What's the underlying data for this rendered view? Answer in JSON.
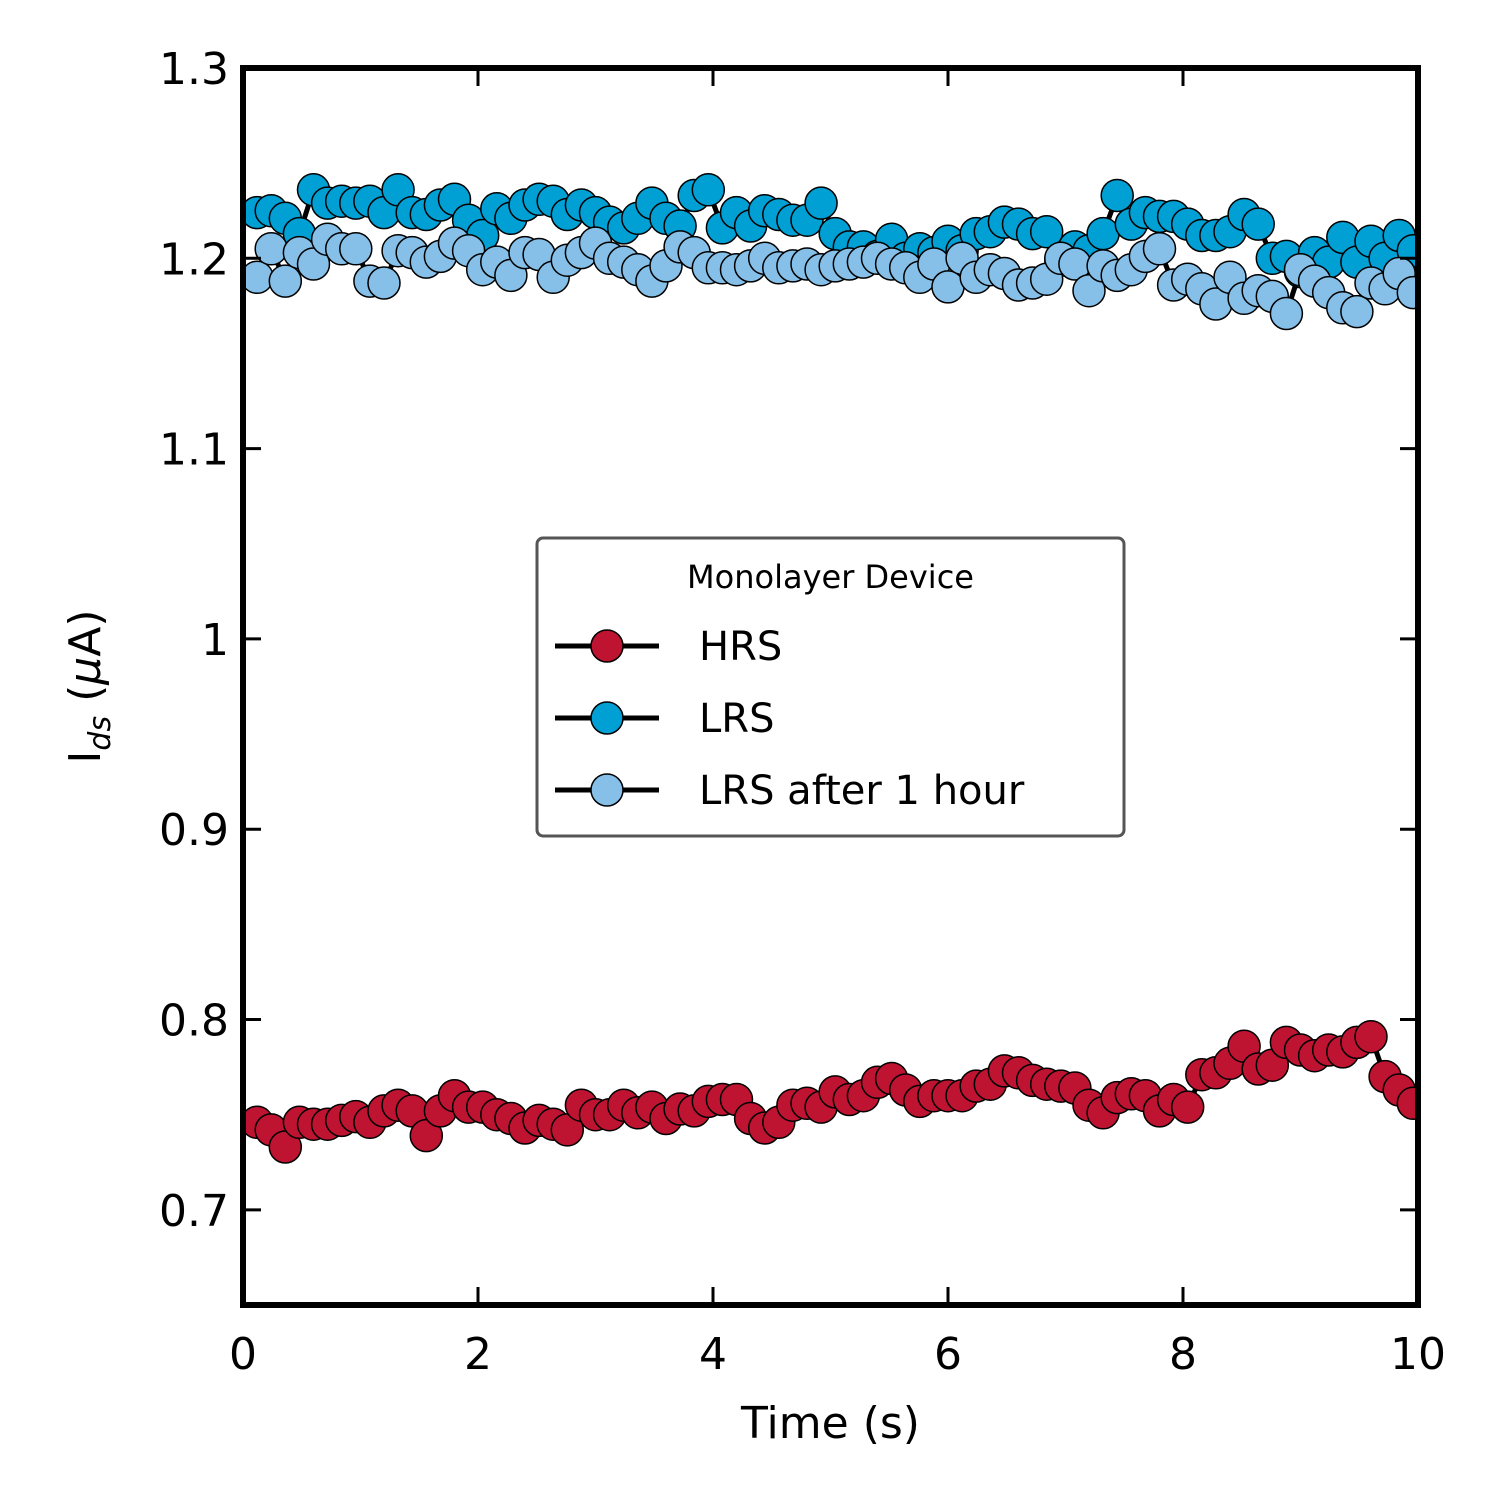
{
  "chart_data": {
    "type": "line",
    "xlabel": "Time (s)",
    "ylabel_main": "I",
    "ylabel_sub": "ds",
    "ylabel_unit_prefix": "(",
    "ylabel_unit_mu": "μ",
    "ylabel_unit_suffix": "A)",
    "xlim": [
      0,
      10
    ],
    "ylim": [
      0.65,
      1.3
    ],
    "x_ticks": [
      0,
      2,
      4,
      6,
      8,
      10
    ],
    "x_tick_labels": [
      "0",
      "2",
      "4",
      "6",
      "8",
      "10"
    ],
    "y_ticks": [
      0.7,
      0.8,
      0.9,
      1.0,
      1.1,
      1.2,
      1.3
    ],
    "y_tick_labels": [
      "0.7",
      "0.8",
      "0.9",
      "1",
      "1.1",
      "1.2",
      "1.3"
    ],
    "grid": false,
    "legend": {
      "title": "Monolayer Device",
      "placement": "center"
    },
    "series": [
      {
        "name": "HRS",
        "color": "#be1431",
        "x": [
          0.12,
          0.24,
          0.36,
          0.48,
          0.6,
          0.72,
          0.84,
          0.96,
          1.08,
          1.2,
          1.32,
          1.44,
          1.56,
          1.68,
          1.8,
          1.92,
          2.04,
          2.16,
          2.28,
          2.4,
          2.52,
          2.64,
          2.76,
          2.88,
          3.0,
          3.12,
          3.24,
          3.36,
          3.48,
          3.6,
          3.72,
          3.84,
          3.96,
          4.08,
          4.2,
          4.32,
          4.44,
          4.56,
          4.68,
          4.8,
          4.92,
          5.04,
          5.16,
          5.28,
          5.4,
          5.52,
          5.64,
          5.76,
          5.88,
          6.0,
          6.12,
          6.24,
          6.36,
          6.48,
          6.6,
          6.72,
          6.84,
          6.96,
          7.08,
          7.2,
          7.32,
          7.44,
          7.56,
          7.68,
          7.8,
          7.92,
          8.04,
          8.16,
          8.28,
          8.4,
          8.52,
          8.64,
          8.76,
          8.88,
          9.0,
          9.12,
          9.24,
          9.36,
          9.48,
          9.6,
          9.72,
          9.84,
          9.96
        ],
        "y": [
          0.746,
          0.742,
          0.733,
          0.746,
          0.745,
          0.745,
          0.747,
          0.749,
          0.746,
          0.752,
          0.755,
          0.752,
          0.739,
          0.752,
          0.76,
          0.754,
          0.754,
          0.75,
          0.748,
          0.743,
          0.747,
          0.745,
          0.742,
          0.755,
          0.75,
          0.75,
          0.755,
          0.751,
          0.754,
          0.748,
          0.753,
          0.752,
          0.757,
          0.758,
          0.758,
          0.748,
          0.743,
          0.746,
          0.755,
          0.756,
          0.754,
          0.762,
          0.758,
          0.76,
          0.767,
          0.769,
          0.763,
          0.757,
          0.76,
          0.76,
          0.76,
          0.765,
          0.766,
          0.773,
          0.772,
          0.768,
          0.766,
          0.765,
          0.764,
          0.755,
          0.751,
          0.759,
          0.761,
          0.76,
          0.752,
          0.758,
          0.754,
          0.771,
          0.772,
          0.777,
          0.786,
          0.774,
          0.776,
          0.788,
          0.784,
          0.781,
          0.784,
          0.783,
          0.788,
          0.791,
          0.77,
          0.763,
          0.756
        ]
      },
      {
        "name": "LRS",
        "color": "#00a0d4",
        "x": [
          0.12,
          0.24,
          0.36,
          0.48,
          0.6,
          0.72,
          0.84,
          0.96,
          1.08,
          1.2,
          1.32,
          1.44,
          1.56,
          1.68,
          1.8,
          1.92,
          2.04,
          2.16,
          2.28,
          2.4,
          2.52,
          2.64,
          2.76,
          2.88,
          3.0,
          3.12,
          3.24,
          3.36,
          3.48,
          3.6,
          3.72,
          3.84,
          3.96,
          4.08,
          4.2,
          4.32,
          4.44,
          4.56,
          4.68,
          4.8,
          4.92,
          5.04,
          5.16,
          5.28,
          5.4,
          5.52,
          5.64,
          5.76,
          5.88,
          6.0,
          6.12,
          6.24,
          6.36,
          6.48,
          6.6,
          6.72,
          6.84,
          6.96,
          7.08,
          7.2,
          7.32,
          7.44,
          7.56,
          7.68,
          7.8,
          7.92,
          8.04,
          8.16,
          8.28,
          8.4,
          8.52,
          8.64,
          8.76,
          8.88,
          9.0,
          9.12,
          9.24,
          9.36,
          9.48,
          9.6,
          9.72,
          9.84,
          9.96
        ],
        "y": [
          1.224,
          1.225,
          1.221,
          1.213,
          1.236,
          1.229,
          1.23,
          1.229,
          1.23,
          1.224,
          1.236,
          1.224,
          1.223,
          1.228,
          1.231,
          1.22,
          1.212,
          1.226,
          1.221,
          1.228,
          1.231,
          1.23,
          1.223,
          1.228,
          1.224,
          1.219,
          1.216,
          1.221,
          1.229,
          1.221,
          1.217,
          1.233,
          1.236,
          1.216,
          1.224,
          1.217,
          1.225,
          1.223,
          1.22,
          1.22,
          1.229,
          1.213,
          1.206,
          1.206,
          1.201,
          1.21,
          1.2,
          1.205,
          1.203,
          1.209,
          1.204,
          1.213,
          1.214,
          1.219,
          1.218,
          1.213,
          1.214,
          1.199,
          1.206,
          1.204,
          1.213,
          1.233,
          1.218,
          1.224,
          1.222,
          1.222,
          1.218,
          1.212,
          1.212,
          1.214,
          1.223,
          1.218,
          1.2,
          1.201,
          1.193,
          1.203,
          1.198,
          1.211,
          1.198,
          1.209,
          1.2,
          1.212,
          1.204
        ]
      },
      {
        "name": "LRS after 1 hour",
        "color": "#86c0e8",
        "x": [
          0.12,
          0.24,
          0.36,
          0.48,
          0.6,
          0.72,
          0.84,
          0.96,
          1.08,
          1.2,
          1.32,
          1.44,
          1.56,
          1.68,
          1.8,
          1.92,
          2.04,
          2.16,
          2.28,
          2.4,
          2.52,
          2.64,
          2.76,
          2.88,
          3.0,
          3.12,
          3.24,
          3.36,
          3.48,
          3.6,
          3.72,
          3.84,
          3.96,
          4.08,
          4.2,
          4.32,
          4.44,
          4.56,
          4.68,
          4.8,
          4.92,
          5.04,
          5.16,
          5.28,
          5.4,
          5.52,
          5.64,
          5.76,
          5.88,
          6.0,
          6.12,
          6.24,
          6.36,
          6.48,
          6.6,
          6.72,
          6.84,
          6.96,
          7.08,
          7.2,
          7.32,
          7.44,
          7.56,
          7.68,
          7.8,
          7.92,
          8.04,
          8.16,
          8.28,
          8.4,
          8.52,
          8.64,
          8.76,
          8.88,
          9.0,
          9.12,
          9.24,
          9.36,
          9.48,
          9.6,
          9.72,
          9.84,
          9.96
        ],
        "y": [
          1.19,
          1.205,
          1.188,
          1.203,
          1.197,
          1.21,
          1.205,
          1.205,
          1.188,
          1.187,
          1.204,
          1.203,
          1.198,
          1.201,
          1.208,
          1.204,
          1.194,
          1.198,
          1.191,
          1.203,
          1.202,
          1.19,
          1.199,
          1.203,
          1.208,
          1.2,
          1.198,
          1.194,
          1.188,
          1.196,
          1.206,
          1.203,
          1.195,
          1.195,
          1.194,
          1.196,
          1.2,
          1.195,
          1.196,
          1.197,
          1.194,
          1.196,
          1.197,
          1.198,
          1.2,
          1.197,
          1.195,
          1.19,
          1.197,
          1.185,
          1.2,
          1.19,
          1.194,
          1.192,
          1.186,
          1.187,
          1.189,
          1.2,
          1.197,
          1.183,
          1.196,
          1.191,
          1.194,
          1.201,
          1.205,
          1.186,
          1.189,
          1.184,
          1.176,
          1.19,
          1.179,
          1.183,
          1.18,
          1.171,
          1.194,
          1.188,
          1.182,
          1.174,
          1.172,
          1.187,
          1.184,
          1.192,
          1.182
        ]
      }
    ]
  }
}
